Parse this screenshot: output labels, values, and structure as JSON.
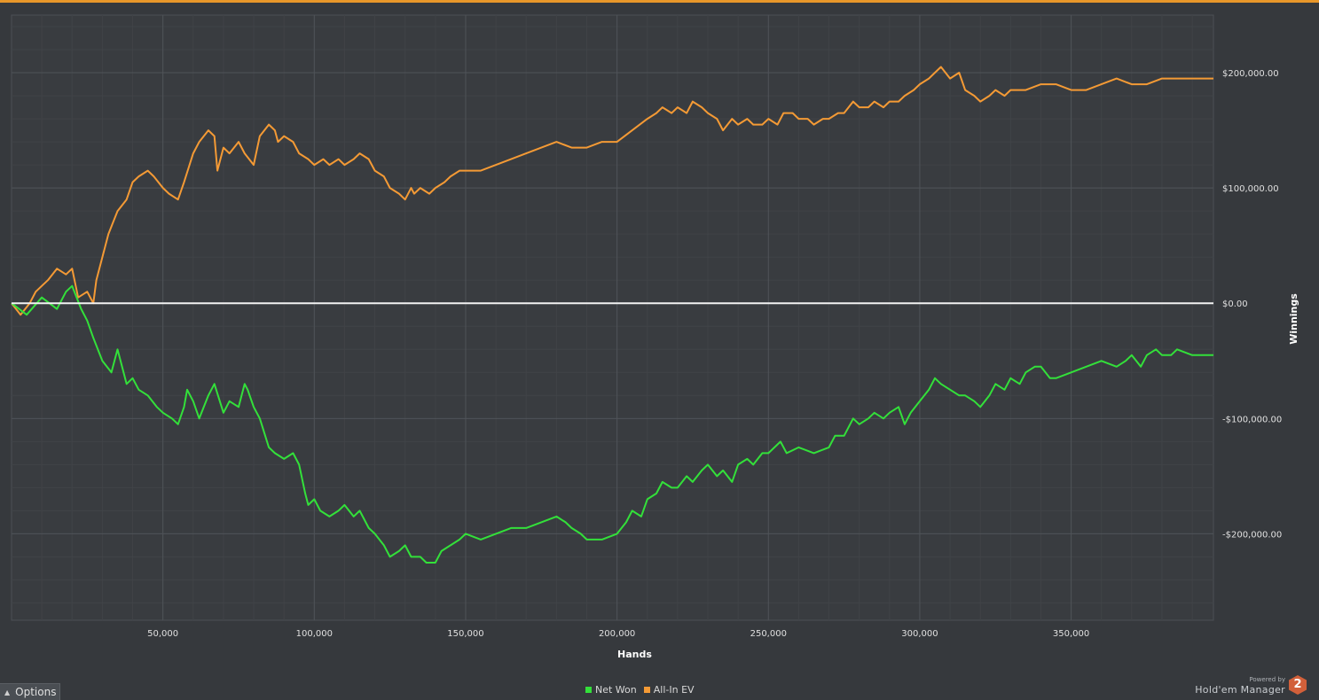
{
  "chart_data": {
    "type": "line",
    "xlabel": "Hands",
    "ylabel": "Winnings",
    "xlim": [
      0,
      397000
    ],
    "ylim": [
      -275000,
      250000
    ],
    "x_ticks": [
      "50,000",
      "100,000",
      "150,000",
      "200,000",
      "250,000",
      "300,000",
      "350,000"
    ],
    "y_ticks": [
      "$200,000.00",
      "$100,000.00",
      "$0.00",
      "-$100,000.00",
      "-$200,000.00"
    ],
    "zero_line": true,
    "grid": true,
    "legend_position": "bottom-center",
    "series": [
      {
        "name": "Net Won",
        "color": "#33e03a",
        "x": [
          0,
          5000,
          10000,
          15000,
          18000,
          20000,
          23000,
          25000,
          27000,
          30000,
          33000,
          35000,
          38000,
          40000,
          42000,
          45000,
          48000,
          50000,
          53000,
          55000,
          57000,
          58000,
          60000,
          62000,
          65000,
          67000,
          70000,
          72000,
          75000,
          77000,
          78000,
          80000,
          82000,
          85000,
          87000,
          90000,
          93000,
          95000,
          97000,
          98000,
          100000,
          102000,
          105000,
          108000,
          110000,
          113000,
          115000,
          118000,
          120000,
          123000,
          125000,
          128000,
          130000,
          132000,
          135000,
          137000,
          140000,
          142000,
          145000,
          148000,
          150000,
          155000,
          160000,
          165000,
          170000,
          175000,
          180000,
          183000,
          185000,
          188000,
          190000,
          195000,
          200000,
          203000,
          205000,
          208000,
          210000,
          213000,
          215000,
          218000,
          220000,
          223000,
          225000,
          228000,
          230000,
          233000,
          235000,
          238000,
          240000,
          243000,
          245000,
          248000,
          250000,
          252000,
          254000,
          256000,
          260000,
          265000,
          270000,
          272000,
          275000,
          278000,
          280000,
          283000,
          285000,
          288000,
          290000,
          293000,
          295000,
          297000,
          300000,
          303000,
          305000,
          307000,
          310000,
          313000,
          315000,
          318000,
          320000,
          323000,
          325000,
          328000,
          330000,
          333000,
          335000,
          338000,
          340000,
          343000,
          345000,
          350000,
          355000,
          360000,
          365000,
          368000,
          370000,
          373000,
          375000,
          378000,
          380000,
          383000,
          385000,
          390000,
          395000,
          397000
        ],
        "y": [
          0,
          -10000,
          5000,
          -5000,
          10000,
          15000,
          -5000,
          -15000,
          -30000,
          -50000,
          -60000,
          -40000,
          -70000,
          -65000,
          -75000,
          -80000,
          -90000,
          -95000,
          -100000,
          -105000,
          -90000,
          -75000,
          -85000,
          -100000,
          -80000,
          -70000,
          -95000,
          -85000,
          -90000,
          -70000,
          -75000,
          -90000,
          -100000,
          -125000,
          -130000,
          -135000,
          -130000,
          -140000,
          -165000,
          -175000,
          -170000,
          -180000,
          -185000,
          -180000,
          -175000,
          -185000,
          -180000,
          -195000,
          -200000,
          -210000,
          -220000,
          -215000,
          -210000,
          -220000,
          -220000,
          -225000,
          -225000,
          -215000,
          -210000,
          -205000,
          -200000,
          -205000,
          -200000,
          -195000,
          -195000,
          -190000,
          -185000,
          -190000,
          -195000,
          -200000,
          -205000,
          -205000,
          -200000,
          -190000,
          -180000,
          -185000,
          -170000,
          -165000,
          -155000,
          -160000,
          -160000,
          -150000,
          -155000,
          -145000,
          -140000,
          -150000,
          -145000,
          -155000,
          -140000,
          -135000,
          -140000,
          -130000,
          -130000,
          -125000,
          -120000,
          -130000,
          -125000,
          -130000,
          -125000,
          -115000,
          -115000,
          -100000,
          -105000,
          -100000,
          -95000,
          -100000,
          -95000,
          -90000,
          -105000,
          -95000,
          -85000,
          -75000,
          -65000,
          -70000,
          -75000,
          -80000,
          -80000,
          -85000,
          -90000,
          -80000,
          -70000,
          -75000,
          -65000,
          -70000,
          -60000,
          -55000,
          -55000,
          -65000,
          -65000,
          -60000,
          -55000,
          -50000,
          -55000,
          -50000,
          -45000,
          -55000,
          -45000,
          -40000,
          -45000,
          -45000,
          -40000,
          -45000,
          -45000,
          -45000
        ]
      },
      {
        "name": "All-In EV",
        "color": "#f49a35",
        "x": [
          0,
          3000,
          6000,
          8000,
          10000,
          12000,
          15000,
          18000,
          20000,
          22000,
          25000,
          27000,
          28000,
          30000,
          32000,
          35000,
          38000,
          40000,
          42000,
          45000,
          47000,
          50000,
          52000,
          55000,
          57000,
          60000,
          62000,
          65000,
          67000,
          68000,
          70000,
          72000,
          75000,
          77000,
          80000,
          82000,
          85000,
          87000,
          88000,
          90000,
          93000,
          95000,
          98000,
          100000,
          103000,
          105000,
          108000,
          110000,
          113000,
          115000,
          118000,
          120000,
          123000,
          125000,
          128000,
          130000,
          132000,
          133000,
          135000,
          138000,
          140000,
          143000,
          145000,
          148000,
          150000,
          155000,
          160000,
          165000,
          170000,
          175000,
          180000,
          185000,
          190000,
          195000,
          200000,
          205000,
          210000,
          213000,
          215000,
          218000,
          220000,
          223000,
          225000,
          228000,
          230000,
          233000,
          235000,
          238000,
          240000,
          243000,
          245000,
          248000,
          250000,
          253000,
          255000,
          258000,
          260000,
          263000,
          265000,
          268000,
          270000,
          273000,
          275000,
          278000,
          280000,
          283000,
          285000,
          288000,
          290000,
          293000,
          295000,
          298000,
          300000,
          303000,
          305000,
          307000,
          310000,
          313000,
          315000,
          318000,
          320000,
          323000,
          325000,
          328000,
          330000,
          335000,
          340000,
          345000,
          350000,
          355000,
          360000,
          365000,
          370000,
          375000,
          380000,
          385000,
          390000,
          395000,
          397000
        ],
        "y": [
          0,
          -10000,
          0,
          10000,
          15000,
          20000,
          30000,
          25000,
          30000,
          5000,
          10000,
          0,
          20000,
          40000,
          60000,
          80000,
          90000,
          105000,
          110000,
          115000,
          110000,
          100000,
          95000,
          90000,
          105000,
          130000,
          140000,
          150000,
          145000,
          115000,
          135000,
          130000,
          140000,
          130000,
          120000,
          145000,
          155000,
          150000,
          140000,
          145000,
          140000,
          130000,
          125000,
          120000,
          125000,
          120000,
          125000,
          120000,
          125000,
          130000,
          125000,
          115000,
          110000,
          100000,
          95000,
          90000,
          100000,
          95000,
          100000,
          95000,
          100000,
          105000,
          110000,
          115000,
          115000,
          115000,
          120000,
          125000,
          130000,
          135000,
          140000,
          135000,
          135000,
          140000,
          140000,
          150000,
          160000,
          165000,
          170000,
          165000,
          170000,
          165000,
          175000,
          170000,
          165000,
          160000,
          150000,
          160000,
          155000,
          160000,
          155000,
          155000,
          160000,
          155000,
          165000,
          165000,
          160000,
          160000,
          155000,
          160000,
          160000,
          165000,
          165000,
          175000,
          170000,
          170000,
          175000,
          170000,
          175000,
          175000,
          180000,
          185000,
          190000,
          195000,
          200000,
          205000,
          195000,
          200000,
          185000,
          180000,
          175000,
          180000,
          185000,
          180000,
          185000,
          185000,
          190000,
          190000,
          185000,
          185000,
          190000,
          195000,
          190000,
          190000,
          195000,
          195000,
          195000,
          195000,
          195000
        ]
      }
    ]
  },
  "ui": {
    "options_label": "Options",
    "powered_by": "Powered by",
    "brand_name": "Hold'em Manager",
    "brand_badge": "2",
    "accent_color": "#e8972a",
    "background_color": "#36393d",
    "plot_background_color": "#393c40"
  }
}
